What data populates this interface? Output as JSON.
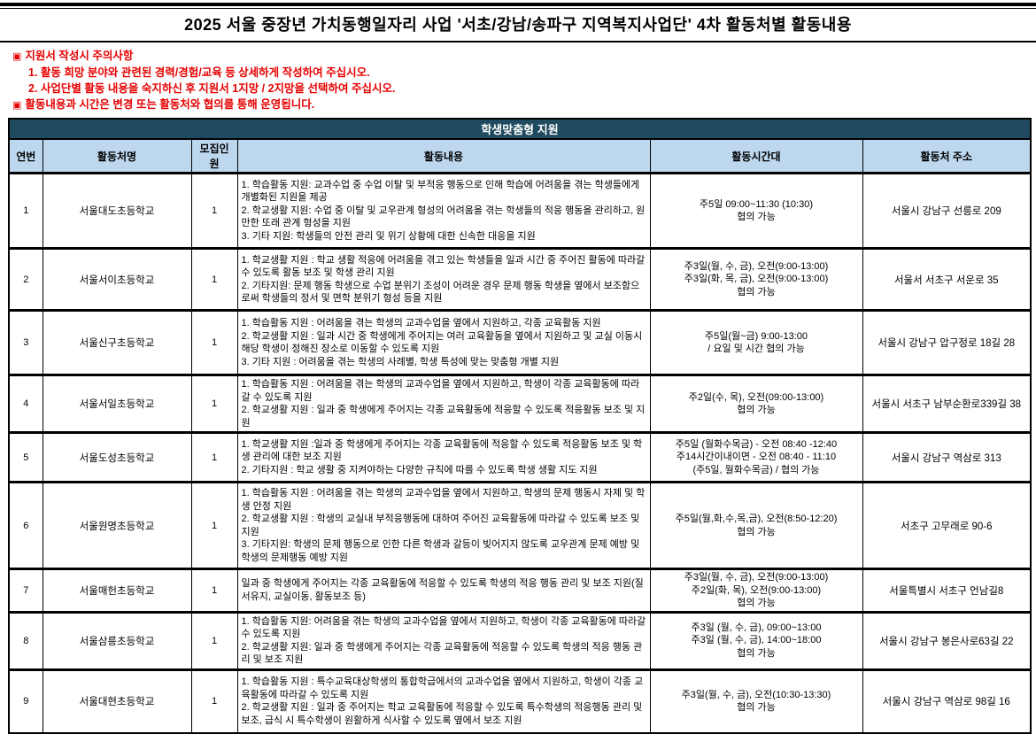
{
  "title": "2025 서울 중장년 가치동행일자리 사업 '서초/강남/송파구 지역복지사업단' 4차 활동처별 활동내용",
  "notices": {
    "marker": "▣",
    "items": [
      {
        "text": "지원서 작성시 주의사항"
      },
      {
        "text": "1. 활동 희망 분야와 관련된 경력/경험/교육 등 상세하게 작성하여 주십시오."
      },
      {
        "text": "2. 사업단별 활동 내용을 숙지하신 후 지원서 1지망 / 2지망을 선택하여 주십시오."
      },
      {
        "text": "활동내용과 시간은 변경 또는 활동처와 협의를 통해 운영됩니다."
      }
    ]
  },
  "section_title": "학생맞춤형 지원",
  "colors": {
    "notice_red": "#e60000",
    "section_band": "#1f4a5f",
    "header_bg": "#bdd7ee",
    "border": "#000000"
  },
  "table": {
    "headers": [
      "연번",
      "활동처명",
      "모집인원",
      "활동내용",
      "활동시간대",
      "활동처 주소"
    ],
    "rows": [
      {
        "no": "1",
        "name": "서울대도초등학교",
        "count": "1",
        "content": [
          "1. 학습활동 지원: 교과수업 중 수업 이탈 및 부적응 행동으로 인해 학습에 어려움을 겪는 학생들에게 개별화된 지원을 제공",
          "2. 학교생활 지원: 수업 중 이탈 및 교우관계 형성의 어려움을 겪는 학생들의 적응 행동을 관리하고, 원만한 또래 관계 형성을 지원",
          "3. 기타 지원: 학생들의 안전 관리 및 위기 상황에 대한 신속한 대응을 지원"
        ],
        "time": [
          "주5일 09:00~11:30 (10:30)",
          "협의 가능"
        ],
        "address": "서울시 강남구 선릉로 209"
      },
      {
        "no": "2",
        "name": "서울서이초등학교",
        "count": "1",
        "content": [
          "1. 학교생활 지원 : 학교 생활 적응에 어려움을 겪고 있는 학생들을 일과 시간 중 주어진 활동에 따라갈 수 있도록 활동 보조 및 학생 관리 지원",
          "2. 기타지원: 문제 행동 학생으로 수업 분위기 조성이 어려운 경우 문제 행동 학생을 옆에서 보조함으로써 학생들의 정서 및 면학 분위기 형성 등을 지원"
        ],
        "time": [
          "주3일(월, 수, 금), 오전(9:00-13:00)",
          "주3일(화, 목, 금), 오전(9:00-13:00)",
          "협의 가능"
        ],
        "address": "서울서 서초구 서운로 35"
      },
      {
        "no": "3",
        "name": "서울신구초등학교",
        "count": "1",
        "content": [
          "1. 학습활동 지원 : 어려움을 겪는 학생의 교과수업을 옆에서 지원하고, 각종 교육활동 지원",
          "2. 학교생활 지원 : 일과 시간 중 학생에게 주어지는 여러 교육활동을 옆에서 지원하고 및 교실 이동시 해당 학생이 정해진 장소로 이동할 수 있도록 지원",
          "3. 기타 지원 : 어려움을 겪는 학생의 사례별, 학생 특성에 맞는 맞춤형 개별 지원"
        ],
        "time": [
          "주5일(월~금)  9:00-13:00",
          "/ 요일 및 시간 협의 가능"
        ],
        "address": "서울시 강남구 압구정로 18길 28"
      },
      {
        "no": "4",
        "name": "서울서일초등학교",
        "count": "1",
        "content": [
          "1. 학습활동 지원 : 어려움을 겪는 학생의 교과수업을 옆에서 지원하고, 학생이 각종 교육활동에 따라갈 수 있도록 지원",
          "2. 학교생활 지원 : 일과 중 학생에게 주어지는 각종 교육활동에 적응할 수 있도록 적응활동 보조 및 지원"
        ],
        "time": [
          "주2일(수, 목), 오전(09:00-13:00)",
          "협의 가능"
        ],
        "address": "서울시 서초구 남부순환로339길 38"
      },
      {
        "no": "5",
        "name": "서울도성초등학교",
        "count": "1",
        "content": [
          "1. 학교생활 지원 :일과 중 학생에게 주어지는 각종 교육활동에 적응할 수 있도록 적응활동 보조 및 학생 관리에 대한 보조 지원",
          "2. 기타지원 : 학교 생활 중 지켜야하는 다양한 규칙에 따를 수 있도록 학생 생활 지도 지원"
        ],
        "time": [
          "주5일 (월화수목금) - 오전 08:40 -12:40",
          "주14시간이내이면 - 오전 08:40 - 11:10",
          "(주5일, 월화수목금) / 협의 가능"
        ],
        "address": "서울시 강남구 역삼로 313"
      },
      {
        "no": "6",
        "name": "서울원명초등학교",
        "count": "1",
        "content": [
          "1. 학습활동 지원 : 어려움을 겪는 학생의 교과수업을 옆에서 지원하고, 학생의 문제 행동시 자제 및 학생 안정 지원",
          "2. 학교생활 지원 : 학생의 교실내 부적응행동에 대하여 주어진 교육활동에 따라갈 수 있도록 보조 및 지원",
          "3. 기타지원: 학생의 문제 행동으로 인한 다른 학생과 갈등이 빚어지지 않도록 교우관계 문제 예방 및 학생의 문제행동 예방 지원"
        ],
        "time": [
          "주5일(월,화,수,목,금), 오전(8:50-12:20)",
          "협의 가능"
        ],
        "address": "서초구 고무래로 90-6"
      },
      {
        "no": "7",
        "name": "서울매헌초등학교",
        "count": "1",
        "content": [
          "일과 중 학생에게 주어지는 각종 교육활동에 적응할 수 있도록 학생의 적응 행동 관리 및 보조 지원(질서유지, 교실이동, 활동보조 등)"
        ],
        "time": [
          "주3일(월, 수, 금), 오전(9:00-13:00)",
          "주2일(화, 목), 오전(9:00-13:00)",
          "협의 가능"
        ],
        "address": "서울특별시 서초구 언남길8"
      },
      {
        "no": "8",
        "name": "서울삼릉초등학교",
        "count": "1",
        "content": [
          "1. 학습활동 지원: 어려움을 겪는 학생의 교과수업을 옆에서 지원하고, 학생이 각종 교육활동에 따라갈 수 있도록 지원",
          "2. 학교생활 지원: 일과 중 학생에게 주어지는 각종 교육활동에 적응할 수 있도록 학생의 적응 행동 관리 및 보조 지원"
        ],
        "time": [
          "주3일 (월, 수, 금), 09:00~13:00",
          "주3일 (월, 수, 금), 14:00~18:00",
          "협의 가능"
        ],
        "address": "서울시 강남구 봉은사로63길 22"
      },
      {
        "no": "9",
        "name": "서울대현초등학교",
        "count": "1",
        "content": [
          "1. 학습활동 지원 : 특수교육대상학생의 통합학급에서의 교과수업을 옆에서 지원하고, 학생이 각종 교육활동에 따라갈 수 있도록 지원",
          "2. 학교생활 지원 : 일과 중 주어지는 학교 교육활동에 적응할 수 있도록 특수학생의 적응행동 관리 및 보조, 급식 시 특수학생이 원활하게 식사할 수 있도록 옆에서 보조 지원"
        ],
        "time": [
          "주3일(월, 수, 금), 오전(10:30-13:30)",
          "협의 가능"
        ],
        "address": "서울시 강남구 역삼로 98길 16"
      }
    ]
  }
}
